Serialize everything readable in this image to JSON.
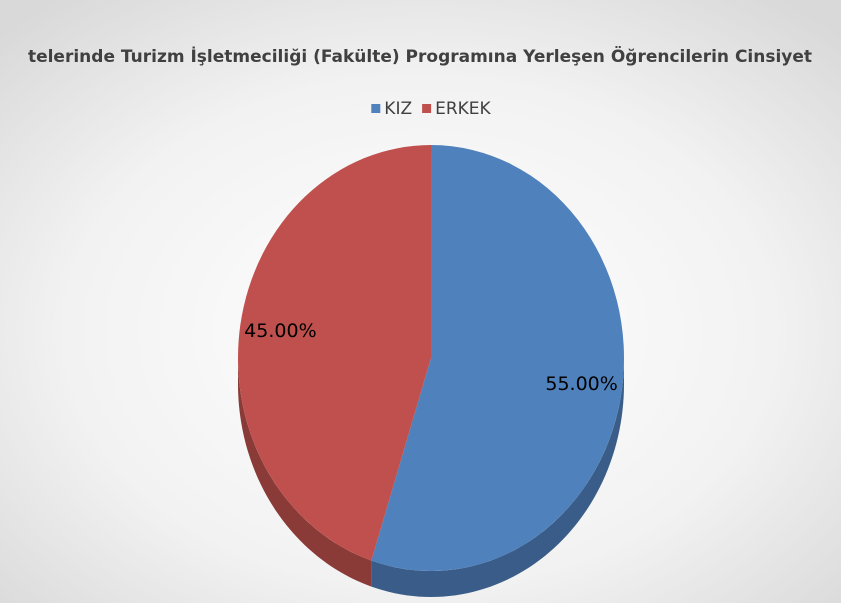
{
  "chart_data": {
    "type": "pie",
    "title": "telerinde Turizm İşletmeciliği (Fakülte) Programına Yerleşen Öğrencilerin Cinsiyet",
    "categories": [
      "KIZ",
      "ERKEK"
    ],
    "values": [
      55,
      45
    ],
    "value_labels": [
      "55.00%",
      "45.00%"
    ],
    "colors": [
      "#4f81bd",
      "#c0504d"
    ],
    "legend": "top"
  }
}
